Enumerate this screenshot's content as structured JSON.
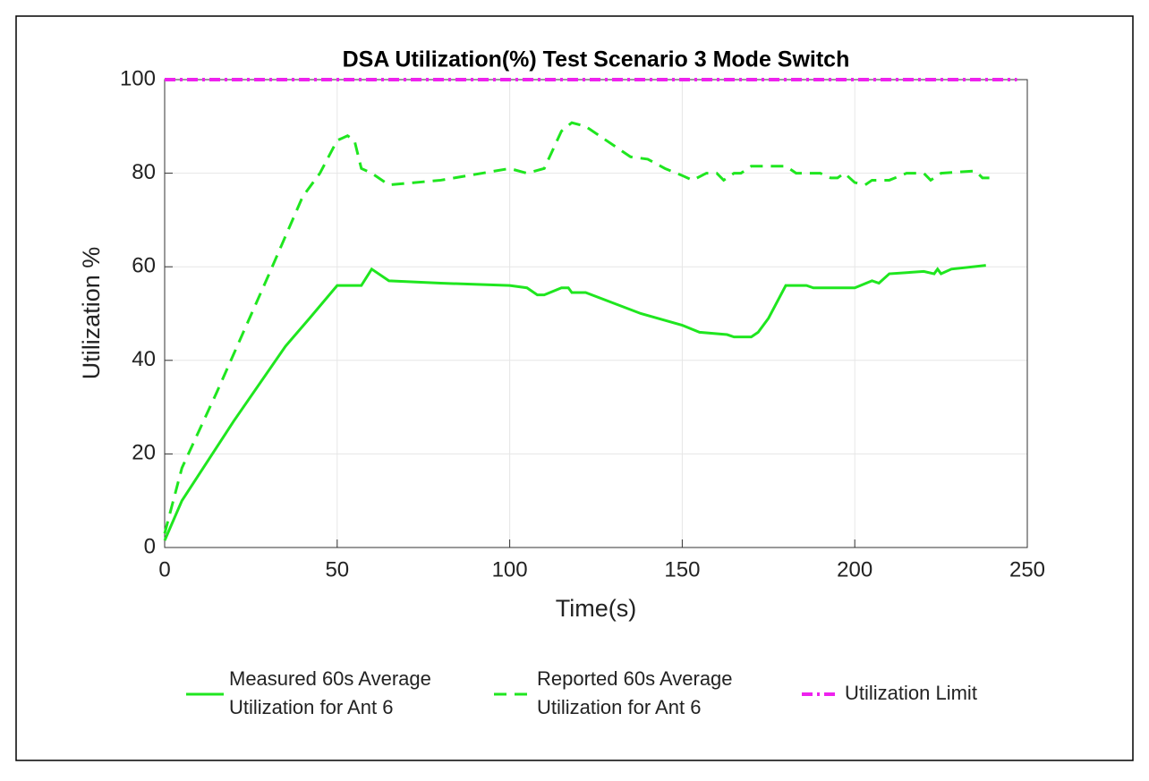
{
  "chart_data": {
    "type": "line",
    "title": "DSA Utilization(%) Test Scenario 3 Mode Switch",
    "xlabel": "Time(s)",
    "ylabel": "Utilization %",
    "xlim": [
      0,
      250
    ],
    "xticks": [
      0,
      50,
      100,
      150,
      200,
      250
    ],
    "ylim": [
      0,
      100
    ],
    "yticks": [
      0,
      20,
      40,
      60,
      80,
      100
    ],
    "grid": true,
    "legend": "bottom",
    "series": [
      {
        "name": "Measured 60s Average Utilization for Ant 6",
        "color": "#1fe61f",
        "style": "solid",
        "x": [
          0,
          5,
          20,
          35,
          42,
          50,
          57,
          60,
          65,
          80,
          100,
          105,
          108,
          110,
          115,
          117,
          118,
          122,
          138,
          150,
          155,
          163,
          165,
          170,
          172,
          175,
          180,
          186,
          188,
          200,
          205,
          207,
          210,
          220,
          223,
          224,
          225,
          228,
          238
        ],
        "values": [
          1.5,
          10,
          27,
          43,
          49,
          56,
          56,
          59.5,
          57,
          56.5,
          56,
          55.5,
          54,
          54,
          55.5,
          55.5,
          54.5,
          54.5,
          50,
          47.5,
          46,
          45.5,
          45,
          45,
          46,
          49,
          56,
          56,
          55.5,
          55.5,
          57,
          56.5,
          58.5,
          59,
          58.5,
          59.5,
          58.5,
          59.5,
          60.3
        ]
      },
      {
        "name": "Reported 60s Average Utilization for Ant 6",
        "color": "#1fe61f",
        "style": "dashed",
        "x": [
          0,
          5,
          15,
          30,
          40,
          45,
          50,
          53,
          55,
          57,
          60,
          65,
          80,
          100,
          105,
          110,
          115,
          118,
          122,
          135,
          140,
          145,
          150,
          153,
          157,
          160,
          162,
          165,
          167,
          170,
          180,
          183,
          190,
          193,
          195,
          197,
          200,
          203,
          205,
          210,
          215,
          220,
          222,
          225,
          235,
          237,
          239
        ],
        "values": [
          3,
          17,
          33,
          58,
          75,
          80,
          87,
          88,
          87,
          81,
          80,
          77.5,
          78.5,
          81,
          80,
          81,
          89,
          90.8,
          90,
          83.5,
          83,
          81,
          79.5,
          78.5,
          80,
          80,
          78.5,
          80,
          80,
          81.5,
          81.5,
          80,
          80,
          79,
          79,
          80,
          78,
          77.5,
          78.5,
          78.5,
          80,
          80,
          78.5,
          80,
          80.5,
          79,
          79
        ]
      },
      {
        "name": "Utilization Limit",
        "color": "#ee22ee",
        "style": "dashdot",
        "x": [
          0,
          247
        ],
        "values": [
          100,
          100
        ]
      }
    ]
  }
}
